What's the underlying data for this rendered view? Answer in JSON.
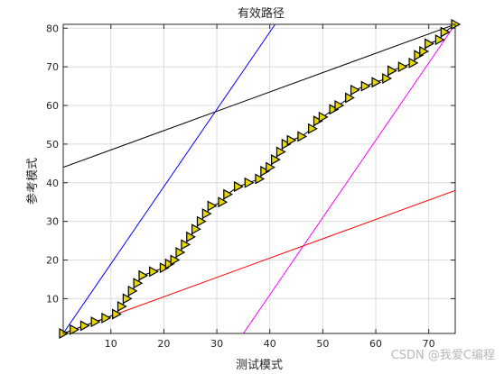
{
  "chart_data": {
    "type": "line",
    "title": "有效路径",
    "xlabel": "测试模式",
    "ylabel": "参考模式",
    "xlim": [
      1,
      75
    ],
    "ylim": [
      1,
      81
    ],
    "xticks": [
      10,
      20,
      30,
      40,
      50,
      60,
      70
    ],
    "yticks": [
      10,
      20,
      30,
      40,
      50,
      60,
      70,
      80
    ],
    "grid": true,
    "series": [
      {
        "style": "markers",
        "marker": "triangle-right",
        "color": "#e6d700",
        "x": [
          1,
          3,
          5,
          7,
          9,
          11,
          12,
          13,
          14,
          15,
          16,
          18,
          20,
          21,
          22,
          23,
          24,
          25,
          26,
          27,
          28,
          29,
          31,
          32,
          34,
          36,
          38,
          39,
          40,
          41,
          42,
          43,
          44,
          46,
          48,
          49,
          50,
          52,
          53,
          55,
          56,
          58,
          60,
          62,
          63,
          65,
          67,
          68,
          69,
          70,
          72,
          73,
          75
        ],
        "y": [
          1,
          2,
          3,
          4,
          5,
          6,
          8,
          10,
          12,
          14,
          16,
          17,
          18,
          19,
          20,
          22,
          24,
          26,
          28,
          30,
          32,
          34,
          35,
          37,
          39,
          40,
          41,
          43,
          44,
          46,
          48,
          50,
          51,
          52,
          54,
          56,
          57,
          59,
          60,
          62,
          64,
          65,
          66,
          67,
          69,
          70,
          71,
          73,
          74,
          76,
          77,
          79,
          81
        ]
      },
      {
        "style": "line",
        "color": "#000000",
        "x": [
          1,
          75
        ],
        "y": [
          44,
          81
        ]
      },
      {
        "style": "line",
        "color": "#0000ff",
        "x": [
          1,
          41
        ],
        "y": [
          1,
          81
        ]
      },
      {
        "style": "line",
        "color": "#ff0000",
        "x": [
          1,
          75
        ],
        "y": [
          1,
          38
        ]
      },
      {
        "style": "line",
        "color": "#ff00ff",
        "x": [
          35,
          75
        ],
        "y": [
          1,
          81
        ]
      }
    ]
  },
  "watermark": "CSDN @我爱C编程"
}
